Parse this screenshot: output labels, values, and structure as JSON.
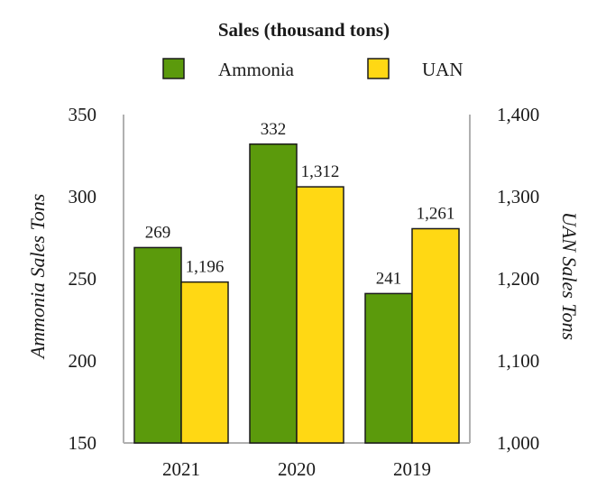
{
  "chart_data": {
    "type": "bar",
    "title": "Sales (thousand tons)",
    "categories": [
      "2021",
      "2020",
      "2019"
    ],
    "series": [
      {
        "name": "Ammonia",
        "axis": "left",
        "values": [
          269,
          332,
          241
        ],
        "labels": [
          "269",
          "332",
          "241"
        ],
        "color": "#5b9a0c"
      },
      {
        "name": "UAN",
        "axis": "right",
        "values": [
          1196,
          1312,
          1261
        ],
        "labels": [
          "1,196",
          "1,312",
          "1,261"
        ],
        "color": "#ffd814"
      }
    ],
    "left_axis": {
      "label": "Ammonia Sales Tons",
      "ylim": [
        150,
        350
      ],
      "ticks": [
        150,
        200,
        250,
        300,
        350
      ],
      "tick_labels": [
        "150",
        "200",
        "250",
        "300",
        "350"
      ]
    },
    "right_axis": {
      "label": "UAN Sales Tons",
      "ylim": [
        1000,
        1400
      ],
      "ticks": [
        1000,
        1100,
        1200,
        1300,
        1400
      ],
      "tick_labels": [
        "1,000",
        "1,100",
        "1,200",
        "1,300",
        "1,400"
      ]
    },
    "legend_position": "top-center",
    "grid": false
  },
  "colors": {
    "bar_stroke": "#1a1a1a",
    "axis": "#b0b0b0",
    "text": "#1a1a1a"
  }
}
